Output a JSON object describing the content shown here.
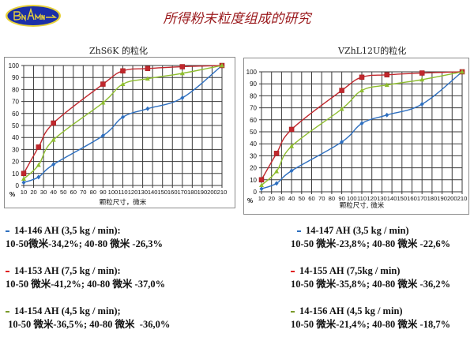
{
  "header": {
    "title": "所得粉末粒度组成的研究",
    "logo_icon": "viam-logo-icon",
    "logo_text": "ВИАМ"
  },
  "colors": {
    "title": "#9b1b1e",
    "series_blue": "#2e6fbf",
    "series_red": "#c0272d",
    "series_green": "#8ebd2f",
    "grid": "#333333",
    "logo_blue": "#1b2fa8",
    "logo_yellow": "#e8d23a"
  },
  "charts": {
    "left": {
      "title": "ZhS6K 的粒化"
    },
    "right": {
      "title": "VZhL12U的粒化"
    }
  },
  "chart_data": [
    {
      "type": "line",
      "title": "ZhS6K 的粒化",
      "xlabel": "颗粒尺寸，微米",
      "ylabel": "%",
      "x_ticks": [
        "10",
        "20",
        "30",
        "40",
        "50",
        "60",
        "70",
        "80",
        "90",
        "100",
        "110",
        "120",
        "130",
        "140",
        "150",
        "160",
        "170",
        "180",
        "190",
        "200",
        "210"
      ],
      "y_ticks": [
        0,
        10,
        20,
        30,
        40,
        50,
        60,
        70,
        80,
        90,
        100
      ],
      "xlim": [
        10,
        210
      ],
      "ylim": [
        0,
        100
      ],
      "grid": true,
      "legend": "none (listed below chart)",
      "x": [
        10,
        25,
        40,
        90,
        110,
        135,
        170,
        210
      ],
      "series": [
        {
          "name": "14-146 AH (3,5 kg / min)",
          "color": "#2e6fbf",
          "marker": "diamond",
          "values": [
            2.5,
            7,
            17.5,
            41.5,
            57,
            64,
            73,
            100
          ]
        },
        {
          "name": "14-153 AH (7,5 kg / min)",
          "color": "#c0272d",
          "marker": "square",
          "values": [
            10,
            32,
            52,
            84.5,
            95.5,
            97.5,
            99,
            100
          ]
        },
        {
          "name": "14-154 AH (4,5 kg / min)",
          "color": "#8ebd2f",
          "marker": "triangle",
          "values": [
            5.5,
            17,
            38,
            69,
            84.5,
            89,
            93.5,
            100
          ]
        }
      ]
    },
    {
      "type": "line",
      "title": "VZhL12U的粒化",
      "xlabel": "颗粒尺寸, 微米",
      "ylabel": "%",
      "x_ticks": [
        "10",
        "20",
        "30",
        "40",
        "50",
        "60",
        "70",
        "80",
        "90",
        "100",
        "110",
        "120",
        "130",
        "140",
        "150",
        "160",
        "170",
        "180",
        "190",
        "200",
        "210"
      ],
      "y_ticks": [
        0,
        10,
        20,
        30,
        40,
        50,
        60,
        70,
        80,
        90,
        100
      ],
      "xlim": [
        10,
        210
      ],
      "ylim": [
        0,
        100
      ],
      "grid": true,
      "legend": "none (listed below chart)",
      "x": [
        10,
        25,
        40,
        90,
        110,
        135,
        170,
        210
      ],
      "series": [
        {
          "name": "14-147 AH (3,5 kg / min)",
          "color": "#2e6fbf",
          "marker": "diamond",
          "values": [
            2.5,
            7,
            17.5,
            41.5,
            57,
            64,
            73,
            100
          ]
        },
        {
          "name": "14-155 AH (7,5kg / min)",
          "color": "#c0272d",
          "marker": "square",
          "values": [
            10,
            32,
            52,
            84.5,
            95.5,
            97.5,
            99,
            100
          ]
        },
        {
          "name": "14-156 AH (4,5 kg / min)",
          "color": "#8ebd2f",
          "marker": "triangle",
          "values": [
            5.5,
            17,
            38,
            69,
            84.5,
            89,
            93.5,
            100
          ]
        }
      ]
    }
  ],
  "legend_left": [
    {
      "color": "#2e6fbf",
      "line1": "14-146 AH (3,5 kg / min):",
      "line2": "10-50微米-34,2%; 40-80 微米 -26,3%"
    },
    {
      "color": "#e02020",
      "line1": "14-153 AH (7,5 kg / min):",
      "line2": "10-50 微米-41,2%; 40-80 微米 -37,0%"
    },
    {
      "color": "#7a9a2a",
      "line1": "14-154 AH (4,5 kg / min);",
      "line2": " 10-50 微米-36,5%; 40-80 微米  -36,0%"
    }
  ],
  "legend_right": [
    {
      "color": "#2e6fbf",
      "line1": "14-147 AH (3,5 kg / min)",
      "line2": "10-50 微米-23,8%; 40-80 微米 -22,6%"
    },
    {
      "color": "#e02020",
      "line1": "14-155 AH (7,5kg / min)",
      "line2": "10-50 微米-35,8%; 40-80 微米 -36,2%"
    },
    {
      "color": "#7a9a2a",
      "line1": "14-156 AH (4,5 kg / min)",
      "line2": "10-50 微米-21,4%; 40-80 微米 -18,7%"
    }
  ]
}
